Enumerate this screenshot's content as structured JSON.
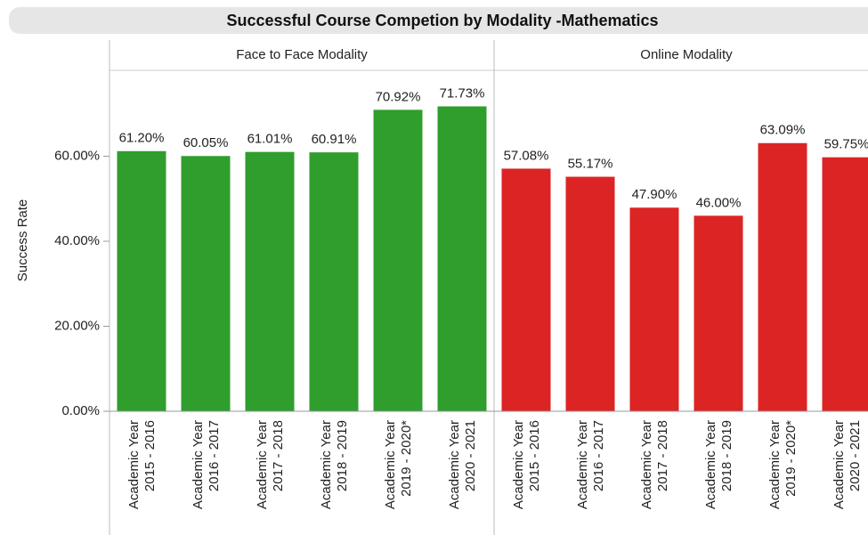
{
  "chart_data": {
    "type": "bar",
    "title": "Successful Course Competion by Modality -Mathematics",
    "y_label": "Success Rate",
    "categories": [
      [
        "Academic Year",
        "2015 - 2016"
      ],
      [
        "Academic Year",
        "2016 - 2017"
      ],
      [
        "Academic Year",
        "2017 - 2018"
      ],
      [
        "Academic Year",
        "2018 - 2019"
      ],
      [
        "Academic Year",
        "2019 - 2020*"
      ],
      [
        "Academic Year",
        "2020 - 2021"
      ]
    ],
    "series": [
      {
        "name": "Face to Face Modality",
        "color": "#2f9e2c",
        "values": [
          61.2,
          60.05,
          61.01,
          60.91,
          70.92,
          71.73
        ],
        "value_labels": [
          "61.20%",
          "60.05%",
          "61.01%",
          "60.91%",
          "70.92%",
          "71.73%"
        ]
      },
      {
        "name": "Online Modality",
        "color": "#dc2424",
        "values": [
          57.08,
          55.17,
          47.9,
          46.0,
          63.09,
          59.75
        ],
        "value_labels": [
          "57.08%",
          "55.17%",
          "47.90%",
          "46.00%",
          "63.09%",
          "59.75%"
        ]
      }
    ],
    "ylim": [
      0,
      80
    ],
    "yticks": [
      {
        "value": 0,
        "label": "0.00%"
      },
      {
        "value": 20,
        "label": "20.00%"
      },
      {
        "value": 40,
        "label": "40.00%"
      },
      {
        "value": 60,
        "label": "60.00%"
      }
    ]
  }
}
